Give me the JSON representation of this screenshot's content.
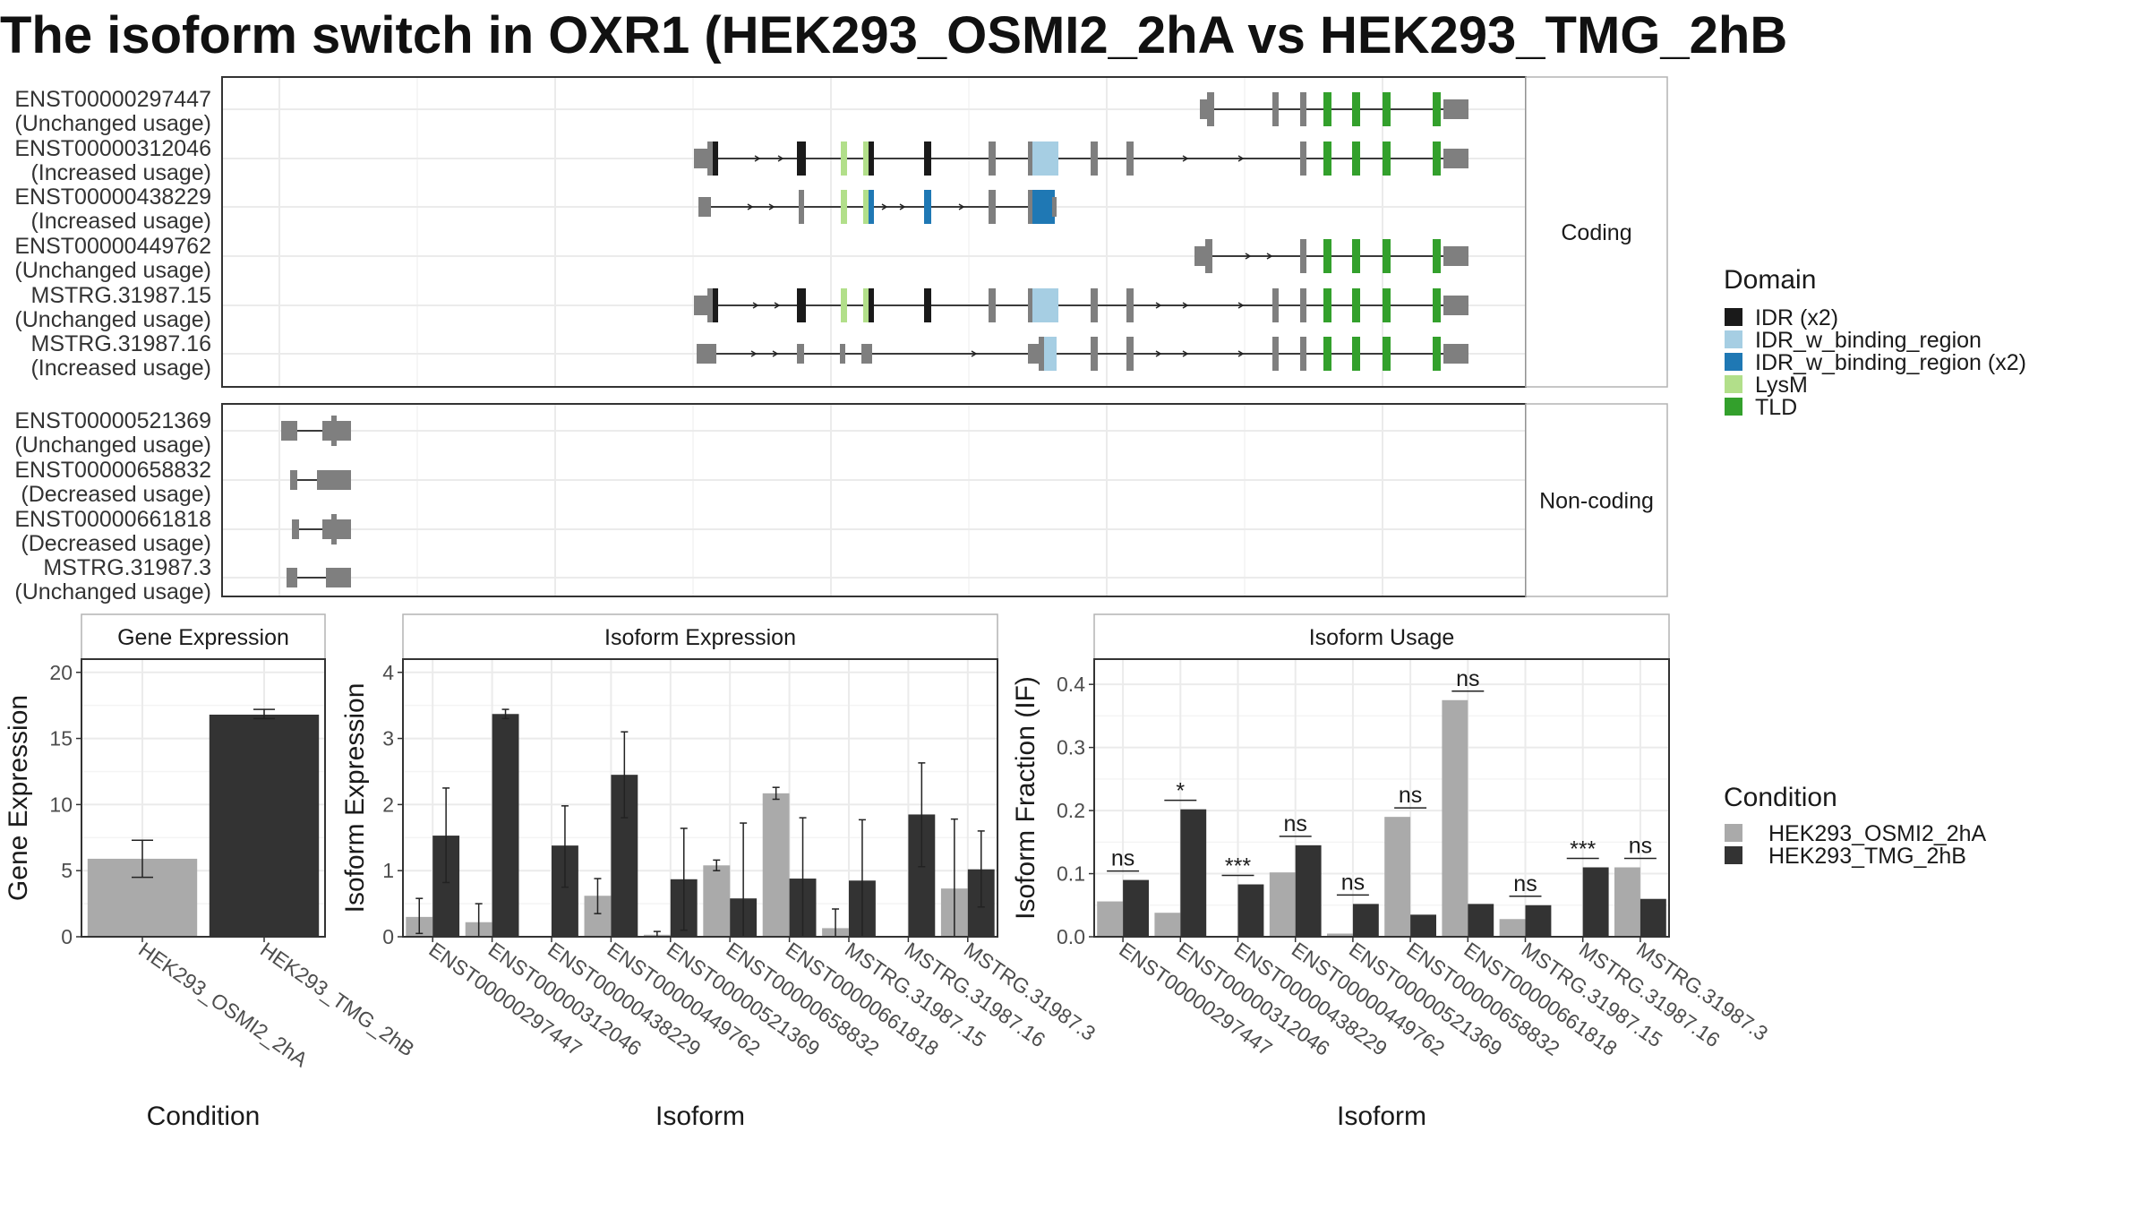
{
  "title": "The isoform switch in OXR1 (HEK293_OSMI2_2hA vs HEK293_TMG_2hB",
  "structure": {
    "coding": {
      "facet_label": "Coding",
      "transcripts": [
        {
          "id": "ENST00000297447",
          "usage": "(Unchanged usage)"
        },
        {
          "id": "ENST00000312046",
          "usage": "(Increased usage)"
        },
        {
          "id": "ENST00000438229",
          "usage": "(Increased usage)"
        },
        {
          "id": "ENST00000449762",
          "usage": "(Unchanged usage)"
        },
        {
          "id": "MSTRG.31987.15",
          "usage": "(Unchanged usage)"
        },
        {
          "id": "MSTRG.31987.16",
          "usage": "(Increased usage)"
        }
      ]
    },
    "noncoding": {
      "facet_label": "Non-coding",
      "transcripts": [
        {
          "id": "ENST00000521369",
          "usage": "(Unchanged usage)"
        },
        {
          "id": "ENST00000658832",
          "usage": "(Decreased usage)"
        },
        {
          "id": "ENST00000661818",
          "usage": "(Decreased usage)"
        },
        {
          "id": "MSTRG.31987.3",
          "usage": "(Unchanged usage)"
        }
      ]
    }
  },
  "legend_domain": {
    "title": "Domain",
    "items": [
      {
        "label": "IDR (x2)",
        "color": "#1a1a1a"
      },
      {
        "label": "IDR_w_binding_region",
        "color": "#a6cee3"
      },
      {
        "label": "IDR_w_binding_region (x2)",
        "color": "#1f78b4"
      },
      {
        "label": "LysM",
        "color": "#b2df8a"
      },
      {
        "label": "TLD",
        "color": "#33a02c"
      }
    ]
  },
  "legend_condition": {
    "title": "Condition",
    "items": [
      {
        "label": "HEK293_OSMI2_2hA",
        "color": "#aaaaaa"
      },
      {
        "label": "HEK293_TMG_2hB",
        "color": "#333333"
      }
    ]
  },
  "chart_data": [
    {
      "type": "bar",
      "title": "Gene Expression",
      "xlabel": "Condition",
      "ylabel": "Gene Expression",
      "categories": [
        "HEK293_OSMI2_2hA",
        "HEK293_TMG_2hB"
      ],
      "values": [
        5.9,
        16.8
      ],
      "error_low": [
        4.5,
        16.5
      ],
      "error_high": [
        7.3,
        17.2
      ],
      "ylim": [
        0,
        21
      ],
      "yticks": [
        0,
        5,
        10,
        15,
        20
      ]
    },
    {
      "type": "bar",
      "title": "Isoform Expression",
      "xlabel": "Isoform",
      "ylabel": "Isoform Expression",
      "categories": [
        "ENST00000297447",
        "ENST00000312046",
        "ENST00000438229",
        "ENST00000449762",
        "ENST00000521369",
        "ENST00000658832",
        "ENST00000661818",
        "MSTRG.31987.15",
        "MSTRG.31987.16",
        "MSTRG.31987.3"
      ],
      "series": [
        {
          "name": "HEK293_OSMI2_2hA",
          "values": [
            0.3,
            0.22,
            0.0,
            0.62,
            0.03,
            1.08,
            2.17,
            0.13,
            0.0,
            0.73
          ],
          "error_low": [
            0.05,
            0.0,
            0.0,
            0.35,
            0.0,
            1.0,
            2.08,
            0.0,
            0.0,
            0.0
          ],
          "error_high": [
            0.58,
            0.5,
            0.0,
            0.88,
            0.08,
            1.16,
            2.26,
            0.42,
            0.0,
            1.78
          ]
        },
        {
          "name": "HEK293_TMG_2hB",
          "values": [
            1.53,
            3.37,
            1.38,
            2.45,
            0.87,
            0.58,
            0.88,
            0.85,
            1.85,
            1.02
          ],
          "error_low": [
            0.82,
            3.3,
            0.75,
            1.8,
            0.1,
            0.0,
            0.0,
            0.0,
            1.06,
            0.45
          ],
          "error_high": [
            2.25,
            3.44,
            1.98,
            3.1,
            1.64,
            1.72,
            1.8,
            1.77,
            2.63,
            1.6
          ]
        }
      ],
      "ylim": [
        0,
        4.2
      ],
      "yticks": [
        0,
        1,
        2,
        3,
        4
      ]
    },
    {
      "type": "bar",
      "title": "Isoform Usage",
      "xlabel": "Isoform",
      "ylabel": "Isoform Fraction (IF)",
      "categories": [
        "ENST00000297447",
        "ENST00000312046",
        "ENST00000438229",
        "ENST00000449762",
        "ENST00000521369",
        "ENST00000658832",
        "ENST00000661818",
        "MSTRG.31987.15",
        "MSTRG.31987.16",
        "MSTRG.31987.3"
      ],
      "series": [
        {
          "name": "HEK293_OSMI2_2hA",
          "values": [
            0.056,
            0.038,
            0.0,
            0.102,
            0.005,
            0.19,
            0.375,
            0.028,
            0.0,
            0.11
          ]
        },
        {
          "name": "HEK293_TMG_2hB",
          "values": [
            0.09,
            0.202,
            0.083,
            0.145,
            0.052,
            0.035,
            0.052,
            0.05,
            0.11,
            0.06
          ]
        }
      ],
      "significance": [
        "ns",
        "*",
        "***",
        "ns",
        "ns",
        "ns",
        "ns",
        "ns",
        "***",
        "ns"
      ],
      "ylim": [
        0,
        0.44
      ],
      "yticks": [
        0.0,
        0.1,
        0.2,
        0.3,
        0.4
      ],
      "ytick_labels": [
        "0.0",
        "0.1",
        "0.2",
        "0.3",
        "0.4"
      ]
    }
  ]
}
